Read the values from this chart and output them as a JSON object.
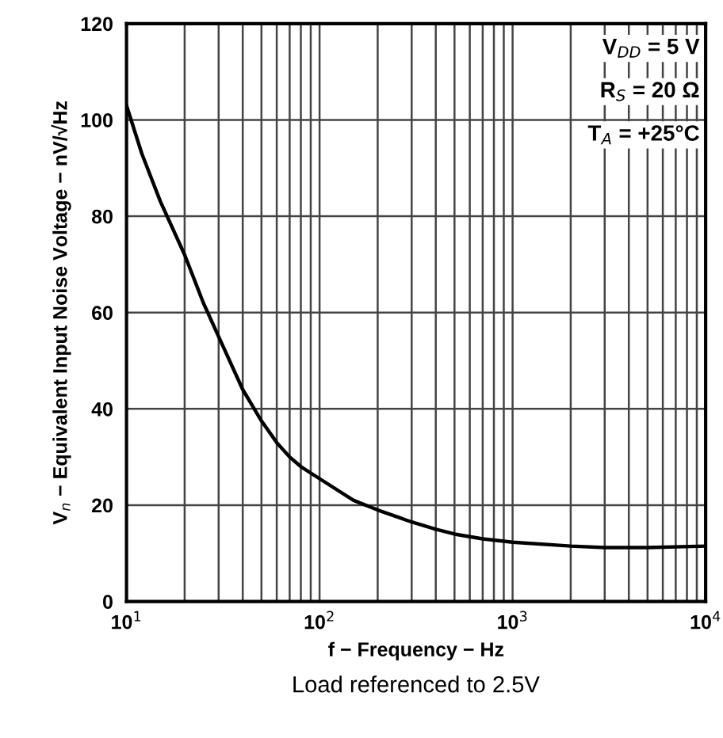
{
  "chart_data": {
    "type": "line",
    "xlabel": "f − Frequency − Hz",
    "ylabel": "V$_{n}$ − Equivalent Input Noise Voltage − nV/√Hz",
    "x": [
      10,
      12,
      15,
      20,
      25,
      30,
      40,
      50,
      60,
      70,
      80,
      100,
      150,
      200,
      300,
      400,
      500,
      700,
      1000,
      2000,
      3000,
      5000,
      10000
    ],
    "series": [
      {
        "color": "#000000",
        "values": [
          103,
          93,
          83,
          72,
          62,
          55,
          44,
          37.5,
          33,
          30,
          28,
          25.5,
          21,
          19,
          16.5,
          15,
          14,
          13,
          12.3,
          11.5,
          11.2,
          11.2,
          11.5
        ]
      }
    ],
    "log": "x",
    "xlim": [
      10,
      10000
    ],
    "xticks": [
      {
        "value": 10,
        "label": "10$^{1}$"
      },
      {
        "value": 100,
        "label": "10$^{2}$"
      },
      {
        "value": 1000,
        "label": "10$^{3}$"
      },
      {
        "value": 10000,
        "label": "10$^{4}$"
      }
    ],
    "ylim": [
      0,
      120
    ],
    "yticks": [
      0,
      20,
      40,
      60,
      80,
      100,
      120
    ],
    "grid": true,
    "marker": "none",
    "line_style": "solid",
    "annotations": [
      "V$_{DD}$ = 5 V",
      "R$_{S}$ = 20 Ω",
      "T$_{A}$ = +25°C",
      "Load referenced to 2.5V"
    ]
  }
}
